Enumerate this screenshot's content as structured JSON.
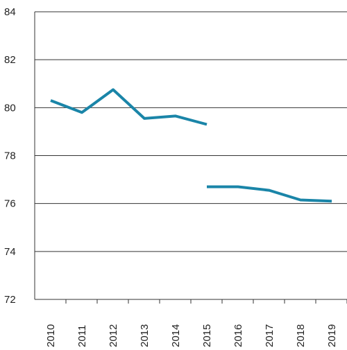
{
  "chart_data": {
    "type": "line",
    "title": "",
    "xlabel": "",
    "ylabel": "",
    "x": [
      "2010",
      "2011",
      "2012",
      "2013",
      "2014",
      "2015",
      "2016",
      "2017",
      "2018",
      "2019"
    ],
    "ylim": [
      72,
      84
    ],
    "yticks": [
      "72",
      "74",
      "76",
      "78",
      "80",
      "82",
      "84"
    ],
    "grid": "horizontal",
    "series": [
      {
        "values": [
          80.3,
          79.8,
          80.75,
          79.55,
          79.65,
          79.3,
          null,
          null,
          null,
          null
        ]
      },
      {
        "values": [
          null,
          null,
          null,
          null,
          null,
          76.7,
          76.7,
          76.55,
          76.15,
          76.1
        ]
      }
    ],
    "colors": {
      "line": "#1a85a8",
      "grid": "#333333",
      "axis": "#333333"
    }
  }
}
